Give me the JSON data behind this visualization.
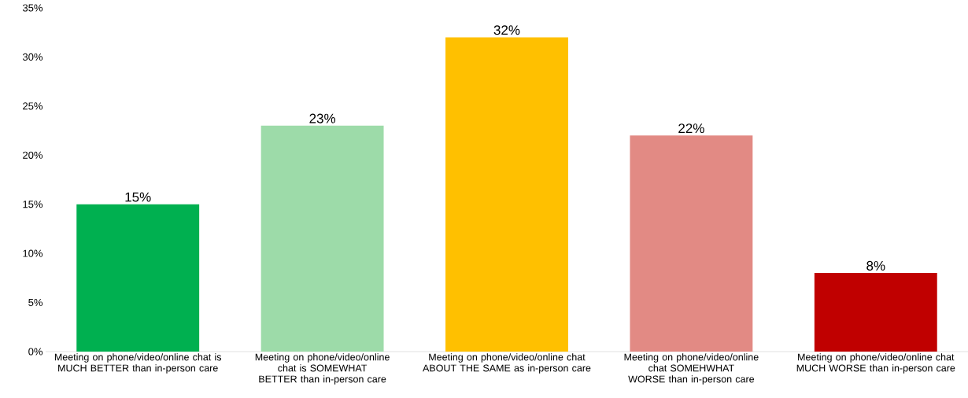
{
  "chart_data": {
    "type": "bar",
    "categories": [
      "Meeting on phone/video/online chat is MUCH BETTER than in-person care",
      "Meeting on phone/video/online chat is SOMEWHAT BETTER than in-person care",
      "Meeting on phone/video/online chat ABOUT THE SAME as in-person care",
      "Meeting on phone/video/online chat SOMEHWHAT WORSE than in-person care",
      "Meeting on phone/video/online chat MUCH WORSE than in-person care"
    ],
    "values": [
      15,
      23,
      32,
      22,
      8
    ],
    "value_labels": [
      "15%",
      "23%",
      "32%",
      "22%",
      "8%"
    ],
    "colors": [
      "#00b050",
      "#9ddba9",
      "#ffc000",
      "#e28a84",
      "#c00000"
    ],
    "ylim": [
      0,
      35
    ],
    "yticks": [
      {
        "value": 0,
        "label": "0%"
      },
      {
        "value": 5,
        "label": "5%"
      },
      {
        "value": 10,
        "label": "10%"
      },
      {
        "value": 15,
        "label": "15%"
      },
      {
        "value": 20,
        "label": "20%"
      },
      {
        "value": 25,
        "label": "25%"
      },
      {
        "value": 30,
        "label": "30%"
      },
      {
        "value": 35,
        "label": "35%"
      }
    ],
    "grid": false
  }
}
